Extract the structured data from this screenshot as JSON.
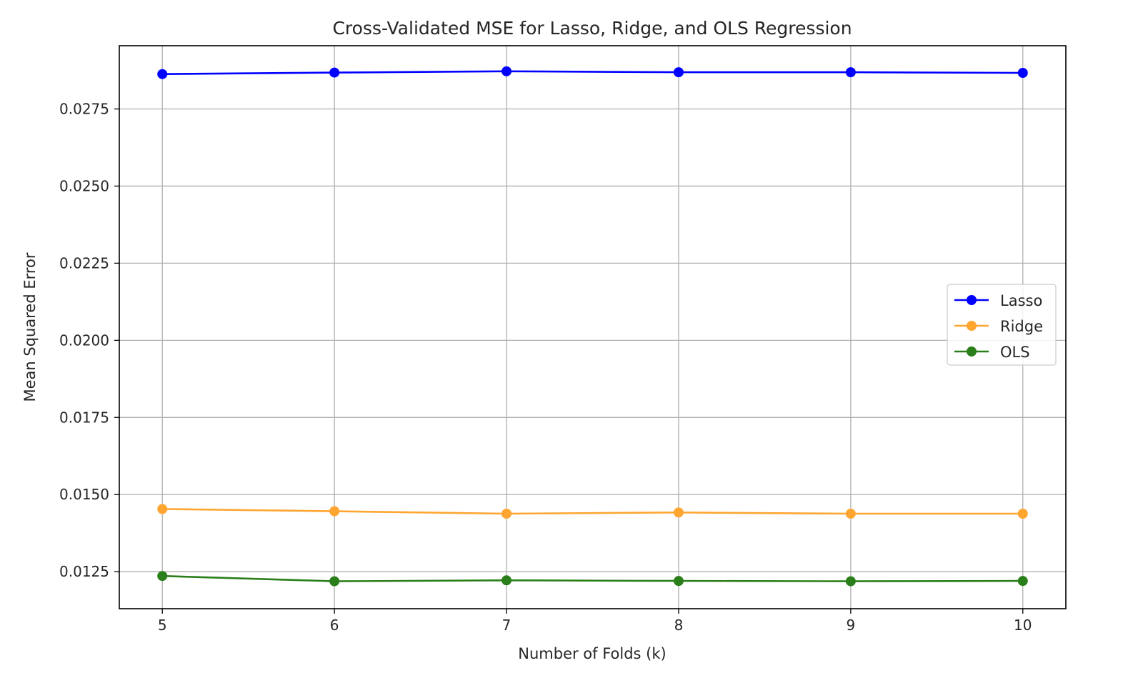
{
  "chart_data": {
    "type": "line",
    "title": "Cross-Validated MSE for Lasso, Ridge, and OLS Regression",
    "xlabel": "Number of Folds (k)",
    "ylabel": "Mean Squared Error",
    "x": [
      5,
      6,
      7,
      8,
      9,
      10
    ],
    "xlim": [
      4.75,
      10.25
    ],
    "ylim": [
      0.0113,
      0.02955
    ],
    "xticks": [
      5,
      6,
      7,
      8,
      9,
      10
    ],
    "xtick_labels": [
      "5",
      "6",
      "7",
      "8",
      "9",
      "10"
    ],
    "yticks": [
      0.0125,
      0.015,
      0.0175,
      0.02,
      0.0225,
      0.025,
      0.0275
    ],
    "ytick_labels": [
      "0.0125",
      "0.0150",
      "0.0175",
      "0.0200",
      "0.0225",
      "0.0250",
      "0.0275"
    ],
    "grid": true,
    "legend_position": "center-right",
    "series": [
      {
        "name": "Lasso",
        "color": "#0000ff",
        "marker": "circle",
        "values": [
          0.02863,
          0.02868,
          0.02872,
          0.02869,
          0.02869,
          0.02867
        ]
      },
      {
        "name": "Ridge",
        "color": "#ffa530",
        "marker": "circle",
        "values": [
          0.01453,
          0.01446,
          0.01438,
          0.01442,
          0.01438,
          0.01438
        ]
      },
      {
        "name": "OLS",
        "color": "#2a7f1a",
        "marker": "circle",
        "values": [
          0.01236,
          0.01219,
          0.01222,
          0.0122,
          0.01219,
          0.0122
        ]
      }
    ]
  }
}
